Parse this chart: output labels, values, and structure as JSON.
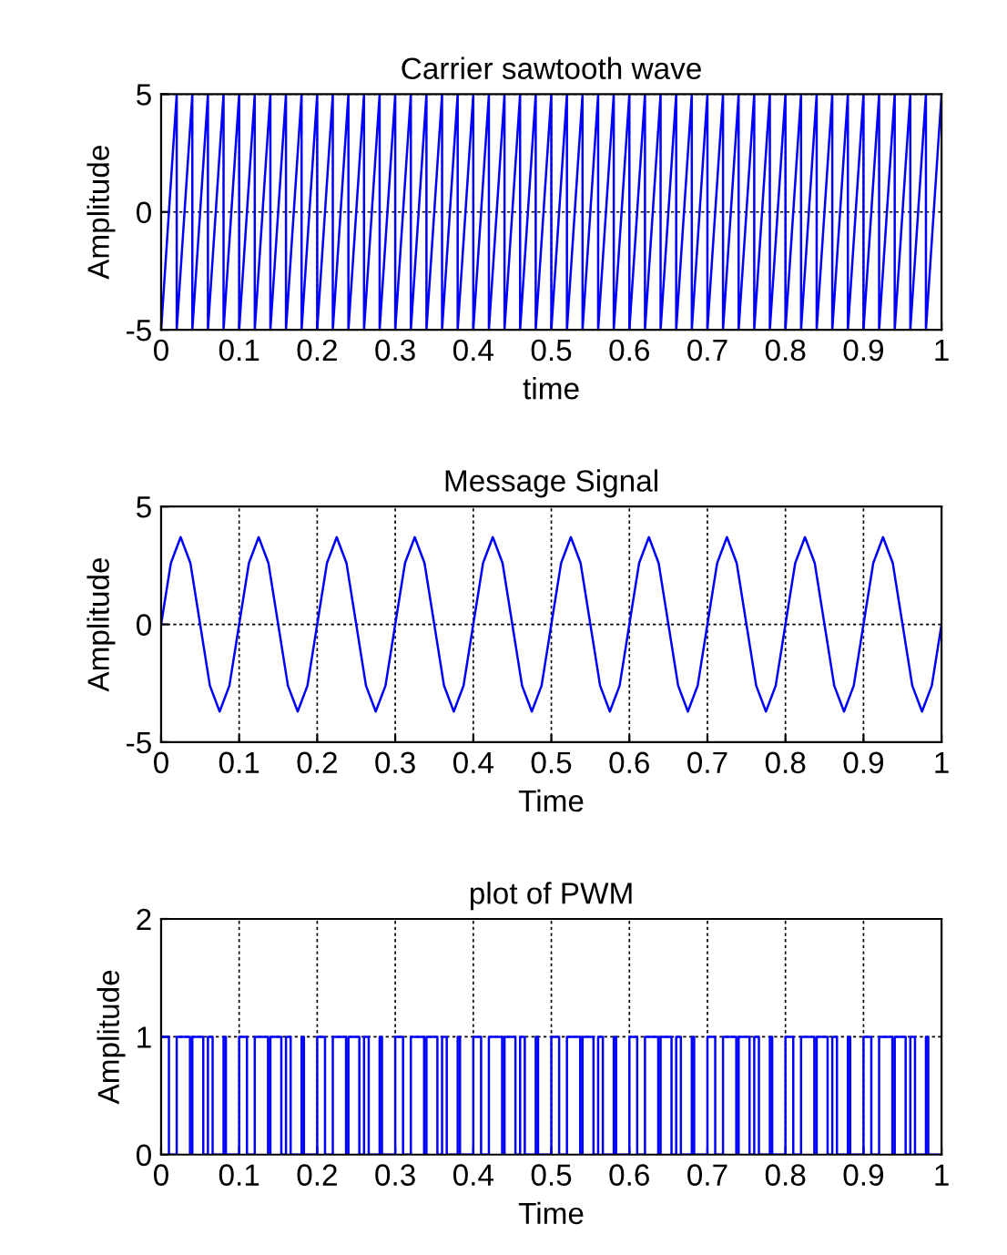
{
  "chart_data": [
    {
      "type": "line",
      "title": "Carrier sawtooth wave",
      "xlabel": "time",
      "ylabel": "Amplitude",
      "xlim": [
        0,
        1
      ],
      "ylim": [
        -5,
        5
      ],
      "xticks": [
        0,
        0.1,
        0.2,
        0.3,
        0.4,
        0.5,
        0.6,
        0.7,
        0.8,
        0.9,
        1
      ],
      "yticks": [
        -5,
        0,
        5
      ],
      "grid": true,
      "series": [
        {
          "color": "#0000ff",
          "x": [
            0,
            0.02,
            0.02,
            0.04,
            0.04,
            0.06,
            0.06,
            0.08,
            0.08,
            0.1,
            0.1,
            0.12,
            0.12,
            0.14,
            0.14,
            0.16,
            0.16,
            0.18,
            0.18,
            0.2,
            0.2,
            0.22,
            0.22,
            0.24,
            0.24,
            0.26,
            0.26,
            0.28,
            0.28,
            0.3,
            0.3,
            0.32,
            0.32,
            0.34,
            0.34,
            0.36,
            0.36,
            0.38,
            0.38,
            0.4,
            0.4,
            0.42,
            0.42,
            0.44,
            0.44,
            0.46,
            0.46,
            0.48,
            0.48,
            0.5,
            0.5,
            0.52,
            0.52,
            0.54,
            0.54,
            0.56,
            0.56,
            0.58,
            0.58,
            0.6,
            0.6,
            0.62,
            0.62,
            0.64,
            0.64,
            0.66,
            0.66,
            0.68,
            0.68,
            0.7,
            0.7,
            0.72,
            0.72,
            0.74,
            0.74,
            0.76,
            0.76,
            0.78,
            0.78,
            0.8,
            0.8,
            0.82,
            0.82,
            0.84,
            0.84,
            0.86,
            0.86,
            0.88,
            0.88,
            0.9,
            0.9,
            0.92,
            0.92,
            0.94,
            0.94,
            0.96,
            0.96,
            0.98,
            0.98,
            1
          ],
          "values": [
            -5,
            5,
            -5,
            5,
            -5,
            5,
            -5,
            5,
            -5,
            5,
            -5,
            5,
            -5,
            5,
            -5,
            5,
            -5,
            5,
            -5,
            5,
            -5,
            5,
            -5,
            5,
            -5,
            5,
            -5,
            5,
            -5,
            5,
            -5,
            5,
            -5,
            5,
            -5,
            5,
            -5,
            5,
            -5,
            5,
            -5,
            5,
            -5,
            5,
            -5,
            5,
            -5,
            5,
            -5,
            5,
            -5,
            5,
            -5,
            5,
            -5,
            5,
            -5,
            5,
            -5,
            5,
            -5,
            5,
            -5,
            5,
            -5,
            5,
            -5,
            5,
            -5,
            5,
            -5,
            5,
            -5,
            5,
            -5,
            5,
            -5,
            5,
            -5,
            5,
            -5,
            5,
            -5,
            5,
            -5,
            5,
            -5,
            5,
            -5,
            5,
            -5,
            5,
            -5,
            5,
            -5,
            5,
            -5,
            5,
            -5,
            5
          ]
        }
      ]
    },
    {
      "type": "line",
      "title": "Message Signal",
      "xlabel": "Time",
      "ylabel": "Amplitude",
      "xlim": [
        0,
        1
      ],
      "ylim": [
        -5,
        5
      ],
      "xticks": [
        0,
        0.1,
        0.2,
        0.3,
        0.4,
        0.5,
        0.6,
        0.7,
        0.8,
        0.9,
        1
      ],
      "yticks": [
        -5,
        0,
        5
      ],
      "grid": true,
      "series": [
        {
          "color": "#0000ff",
          "x": [
            0,
            0.0125,
            0.025,
            0.0375,
            0.05,
            0.0625,
            0.075,
            0.0875,
            0.1,
            0.1125,
            0.125,
            0.1375,
            0.15,
            0.1625,
            0.175,
            0.1875,
            0.2,
            0.2125,
            0.225,
            0.2375,
            0.25,
            0.2625,
            0.275,
            0.2875,
            0.3,
            0.3125,
            0.325,
            0.3375,
            0.35,
            0.3625,
            0.375,
            0.3875,
            0.4,
            0.4125,
            0.425,
            0.4375,
            0.45,
            0.4625,
            0.475,
            0.4875,
            0.5,
            0.5125,
            0.525,
            0.5375,
            0.55,
            0.5625,
            0.575,
            0.5875,
            0.6,
            0.6125,
            0.625,
            0.6375,
            0.65,
            0.6625,
            0.675,
            0.6875,
            0.7,
            0.7125,
            0.725,
            0.7375,
            0.75,
            0.7625,
            0.775,
            0.7875,
            0.8,
            0.8125,
            0.825,
            0.8375,
            0.85,
            0.8625,
            0.875,
            0.8875,
            0.9,
            0.9125,
            0.925,
            0.9375,
            0.95,
            0.9625,
            0.975,
            0.9875,
            1
          ],
          "values": [
            0,
            2.6,
            3.7,
            2.6,
            0,
            -2.6,
            -3.7,
            -2.6,
            0,
            2.6,
            3.7,
            2.6,
            0,
            -2.6,
            -3.7,
            -2.6,
            0,
            2.6,
            3.7,
            2.6,
            0,
            -2.6,
            -3.7,
            -2.6,
            0,
            2.6,
            3.7,
            2.6,
            0,
            -2.6,
            -3.7,
            -2.6,
            0,
            2.6,
            3.7,
            2.6,
            0,
            -2.6,
            -3.7,
            -2.6,
            0,
            2.6,
            3.7,
            2.6,
            0,
            -2.6,
            -3.7,
            -2.6,
            0,
            2.6,
            3.7,
            2.6,
            0,
            -2.6,
            -3.7,
            -2.6,
            0,
            2.6,
            3.7,
            2.6,
            0,
            -2.6,
            -3.7,
            -2.6,
            0,
            2.6,
            3.7,
            2.6,
            0,
            -2.6,
            -3.7,
            -2.6,
            0,
            2.6,
            3.7,
            2.6,
            0,
            -2.6,
            -3.7,
            -2.6,
            0
          ]
        }
      ]
    },
    {
      "type": "step",
      "title": "plot of PWM",
      "xlabel": "Time",
      "ylabel": "Amplitude",
      "xlim": [
        0,
        1
      ],
      "ylim": [
        0,
        2
      ],
      "xticks": [
        0,
        0.1,
        0.2,
        0.3,
        0.4,
        0.5,
        0.6,
        0.7,
        0.8,
        0.9,
        1
      ],
      "yticks": [
        0,
        1,
        2
      ],
      "grid": true,
      "series": [
        {
          "color": "#0000ff",
          "x": [
            0,
            0.01,
            0.02,
            0.037,
            0.04,
            0.054,
            0.06,
            0.066,
            0.08,
            0.083,
            0.1,
            0.11,
            0.12,
            0.137,
            0.14,
            0.154,
            0.16,
            0.166,
            0.18,
            0.183,
            0.2,
            0.21,
            0.22,
            0.237,
            0.24,
            0.254,
            0.26,
            0.266,
            0.28,
            0.283,
            0.3,
            0.31,
            0.32,
            0.337,
            0.34,
            0.354,
            0.36,
            0.366,
            0.38,
            0.383,
            0.4,
            0.41,
            0.42,
            0.437,
            0.44,
            0.454,
            0.46,
            0.466,
            0.48,
            0.483,
            0.5,
            0.51,
            0.52,
            0.537,
            0.54,
            0.554,
            0.56,
            0.566,
            0.58,
            0.583,
            0.6,
            0.61,
            0.62,
            0.637,
            0.64,
            0.654,
            0.66,
            0.666,
            0.68,
            0.683,
            0.7,
            0.71,
            0.72,
            0.737,
            0.74,
            0.754,
            0.76,
            0.766,
            0.78,
            0.783,
            0.8,
            0.81,
            0.82,
            0.837,
            0.84,
            0.854,
            0.86,
            0.866,
            0.88,
            0.883,
            0.9,
            0.91,
            0.92,
            0.937,
            0.94,
            0.954,
            0.96,
            0.966,
            0.98,
            0.983,
            1
          ],
          "values": [
            1,
            0,
            1,
            0,
            1,
            0,
            1,
            0,
            1,
            0,
            1,
            0,
            1,
            0,
            1,
            0,
            1,
            0,
            1,
            0,
            1,
            0,
            1,
            0,
            1,
            0,
            1,
            0,
            1,
            0,
            1,
            0,
            1,
            0,
            1,
            0,
            1,
            0,
            1,
            0,
            1,
            0,
            1,
            0,
            1,
            0,
            1,
            0,
            1,
            0,
            1,
            0,
            1,
            0,
            1,
            0,
            1,
            0,
            1,
            0,
            1,
            0,
            1,
            0,
            1,
            0,
            1,
            0,
            1,
            0,
            1,
            0,
            1,
            0,
            1,
            0,
            1,
            0,
            1,
            0,
            1,
            0,
            1,
            0,
            1,
            0,
            1,
            0,
            1,
            0,
            1,
            0,
            1,
            0,
            1,
            0,
            1,
            0,
            1,
            0,
            0
          ]
        }
      ]
    }
  ]
}
